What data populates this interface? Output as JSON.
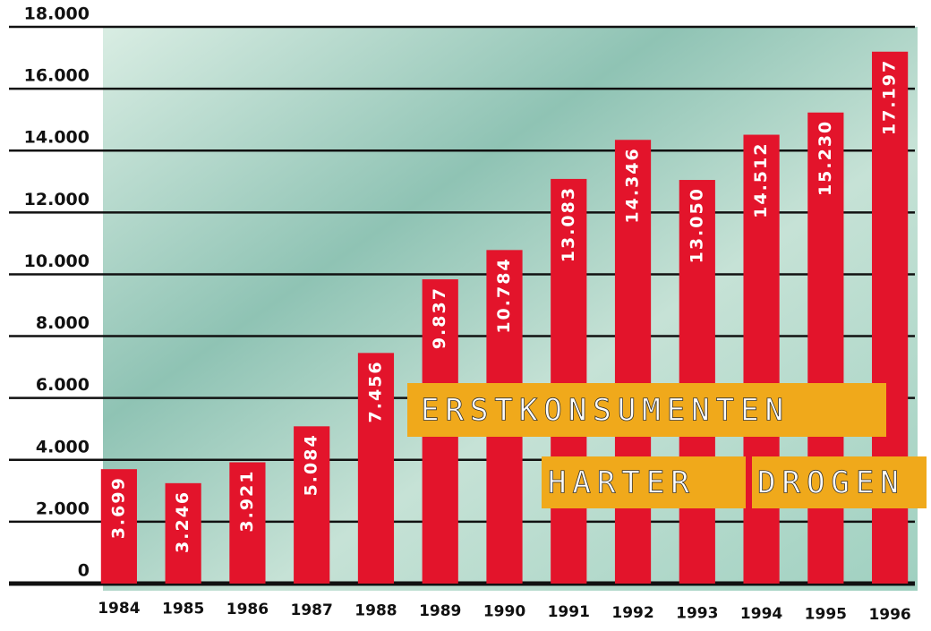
{
  "chart_data": {
    "type": "bar",
    "annotations": [
      "ERSTKONSUMENTEN",
      "HARTER",
      "DROGEN"
    ],
    "categories": [
      "1984",
      "1985",
      "1986",
      "1987",
      "1988",
      "1989",
      "1990",
      "1991",
      "1992",
      "1993",
      "1994",
      "1995",
      "1996"
    ],
    "values": [
      3699,
      3246,
      3921,
      5084,
      7456,
      9837,
      10784,
      13083,
      14346,
      13050,
      14512,
      15230,
      17197
    ],
    "value_labels": [
      "3.699",
      "3.246",
      "3.921",
      "5.084",
      "7.456",
      "9.837",
      "10.784",
      "13.083",
      "14.346",
      "13.050",
      "14.512",
      "15.230",
      "17.197"
    ],
    "color": "#e3142b",
    "ylim": [
      0,
      18000
    ],
    "yticks": [
      0,
      {
        "value": 2000,
        "label": "2.000"
      },
      {
        "value": 4000,
        "label": "4.000"
      },
      {
        "value": 6000,
        "label": "6.000"
      },
      {
        "value": 8000,
        "label": "8.000"
      },
      {
        "value": 10000,
        "label": "10.000"
      },
      {
        "value": 12000,
        "label": "12.000"
      },
      {
        "value": 14000,
        "label": "14.000"
      },
      {
        "value": 16000,
        "label": "16.000"
      },
      {
        "value": 18000,
        "label": "18.000"
      }
    ],
    "grid": true
  }
}
